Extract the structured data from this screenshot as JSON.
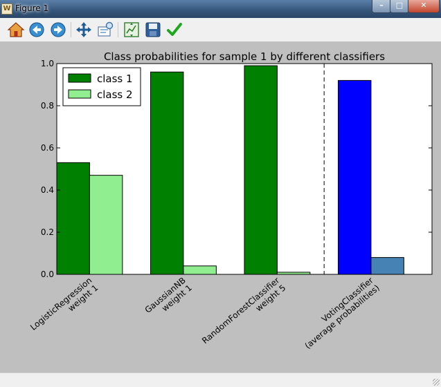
{
  "window": {
    "title": "Figure 1",
    "minimize_glyph": "–",
    "maximize_glyph": "□",
    "close_glyph": "✕"
  },
  "toolbar": {
    "tools": [
      {
        "name": "home-icon",
        "tooltip": ""
      },
      {
        "name": "back-arrow-icon",
        "tooltip": ""
      },
      {
        "name": "forward-arrow-icon",
        "tooltip": ""
      },
      {
        "name": "pan-icon",
        "tooltip": ""
      },
      {
        "name": "zoom-icon",
        "tooltip": ""
      },
      {
        "name": "subplots-icon",
        "tooltip": ""
      },
      {
        "name": "save-icon",
        "tooltip": ""
      },
      {
        "name": "checkmark-icon",
        "tooltip": ""
      }
    ]
  },
  "chart_data": {
    "type": "bar",
    "title": "Class probabilities for sample 1 by different classifiers",
    "categories": [
      [
        "LogisticRegression",
        "weight 1"
      ],
      [
        "GaussianNB",
        "weight 1"
      ],
      [
        "RandomForestClassifier",
        "weight 5"
      ],
      [
        "VotingClassifier",
        "(average probabilities)"
      ]
    ],
    "series": [
      {
        "name": "class 1",
        "values": [
          0.53,
          0.96,
          0.99,
          0.92
        ],
        "color": "#008000",
        "highlight_color": "#0000ff"
      },
      {
        "name": "class 2",
        "values": [
          0.47,
          0.04,
          0.01,
          0.08
        ],
        "color": "#90ee90",
        "highlight_color": "#4682b4"
      }
    ],
    "highlight_index": 3,
    "ylim": [
      0,
      1.0
    ],
    "yticks": [
      "0.0",
      "0.2",
      "0.4",
      "0.6",
      "0.8",
      "1.0"
    ],
    "ytick_values": [
      0,
      0.2,
      0.4,
      0.6,
      0.8,
      1.0
    ],
    "separator_after_index": 2,
    "legend": {
      "placement": "top-left"
    },
    "grid": false,
    "xlabel": "",
    "ylabel": ""
  }
}
